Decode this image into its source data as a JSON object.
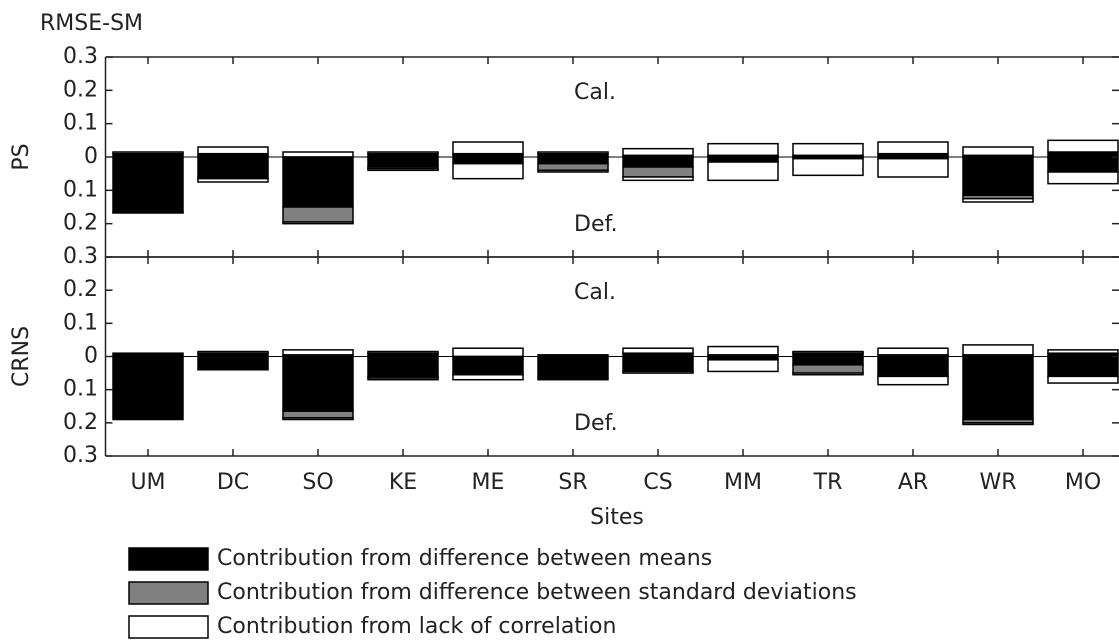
{
  "chart_data": {
    "type": "diverging-stacked-bar",
    "title": "RMSE-SM",
    "x_label": "Sites",
    "categories": [
      "UM",
      "DC",
      "SO",
      "KE",
      "ME",
      "SR",
      "CS",
      "MM",
      "TR",
      "AR",
      "WR",
      "MO"
    ],
    "ylim": [
      -0.3,
      0.3
    ],
    "series": [
      {
        "name": "Contribution from difference between means",
        "color": "#000000"
      },
      {
        "name": "Contribution from difference between standard deviations",
        "color": "#808080"
      },
      {
        "name": "Contribution from lack of correlation",
        "color": "#ffffff"
      }
    ],
    "panels": [
      {
        "y_label": "PS",
        "top_label": "Cal.",
        "bottom_label": "Def.",
        "yticks": [
          0.3,
          0.2,
          0.1,
          0,
          {
            "value": -0.1,
            "label": "0.1"
          },
          {
            "value": -0.2,
            "label": "0.2"
          },
          {
            "value": -0.3,
            "label": "0.3"
          }
        ],
        "series": [
          {
            "cal": [
              0.01,
              0.01,
              0,
              0.01,
              0.01,
              0.01,
              0.005,
              0.005,
              0.005,
              0.01,
              0.005,
              0.015
            ],
            "def": [
              -0.165,
              -0.065,
              -0.15,
              -0.03,
              -0.02,
              -0.02,
              -0.03,
              -0.015,
              -0.005,
              -0.005,
              -0.115,
              -0.045
            ]
          },
          {
            "cal": [
              0,
              0,
              0,
              0,
              0,
              0,
              0,
              0,
              0,
              0,
              0,
              0
            ],
            "def": [
              -0.003,
              0,
              -0.045,
              -0.005,
              0,
              -0.02,
              -0.03,
              0,
              0,
              0,
              -0.01,
              0
            ]
          },
          {
            "cal": [
              0.005,
              0.02,
              0.015,
              0.005,
              0.035,
              0.005,
              0.02,
              0.035,
              0.035,
              0.035,
              0.025,
              0.035
            ],
            "def": [
              0,
              -0.01,
              -0.005,
              -0.005,
              -0.045,
              -0.005,
              -0.01,
              -0.055,
              -0.05,
              -0.055,
              -0.01,
              -0.035
            ]
          }
        ]
      },
      {
        "y_label": "CRNS",
        "top_label": "Cal.",
        "bottom_label": "Def.",
        "yticks": [
          0.2,
          0.1,
          0,
          {
            "value": -0.1,
            "label": "0.1"
          },
          {
            "value": -0.2,
            "label": "0.2"
          },
          {
            "value": -0.3,
            "label": "0.3"
          }
        ],
        "series": [
          {
            "cal": [
              0.01,
              0.01,
              0.005,
              0.01,
              0,
              0.005,
              0.01,
              0.005,
              0.01,
              0.005,
              0.005,
              0.01
            ],
            "def": [
              -0.19,
              -0.04,
              -0.165,
              -0.06,
              -0.055,
              -0.07,
              -0.045,
              -0.01,
              -0.025,
              -0.055,
              -0.19,
              -0.06
            ]
          },
          {
            "cal": [
              0,
              0,
              0,
              0,
              0,
              0,
              0,
              0,
              0,
              0,
              0,
              0
            ],
            "def": [
              0,
              0,
              -0.02,
              -0.005,
              0,
              0,
              0,
              0,
              -0.025,
              -0.005,
              -0.01,
              0
            ]
          },
          {
            "cal": [
              0,
              0.005,
              0.015,
              0.005,
              0.025,
              0,
              0.015,
              0.025,
              0.005,
              0.02,
              0.03,
              0.01
            ],
            "def": [
              0,
              0,
              -0.005,
              -0.005,
              -0.015,
              0,
              -0.005,
              -0.035,
              -0.005,
              -0.025,
              -0.005,
              -0.02
            ]
          }
        ]
      }
    ]
  }
}
